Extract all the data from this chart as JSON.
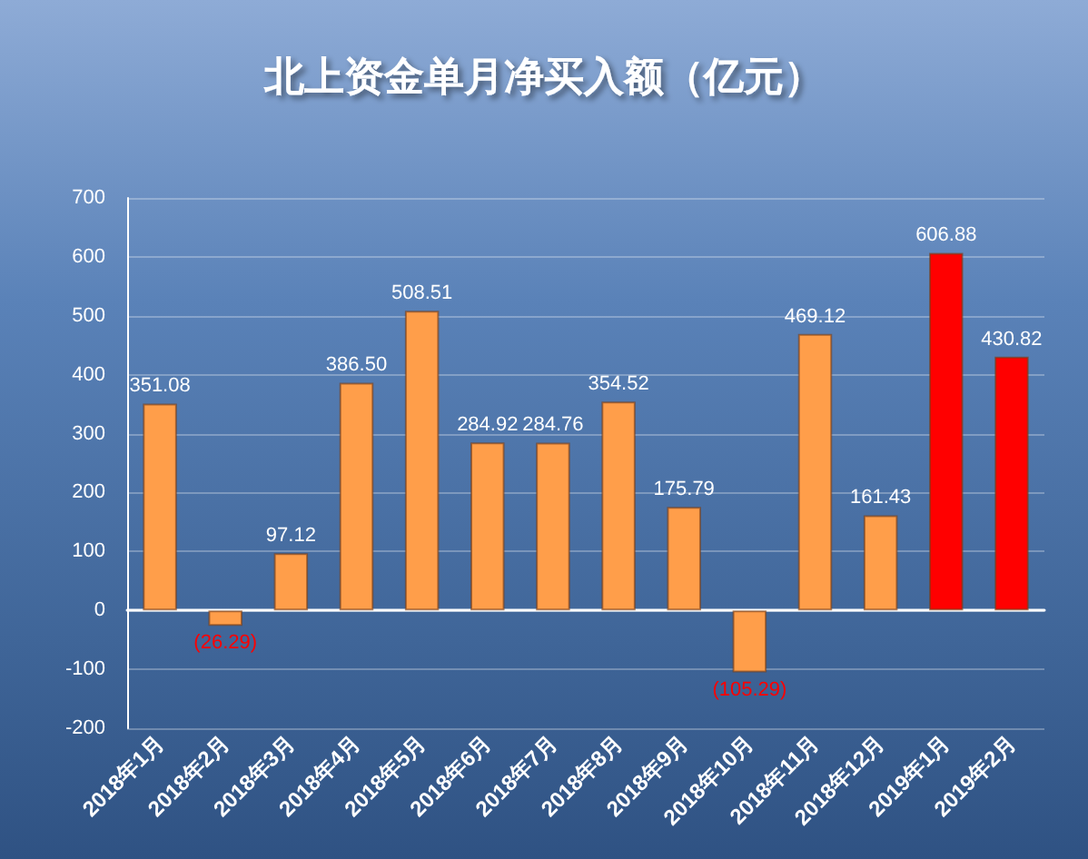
{
  "chart_data": {
    "type": "bar",
    "title": "北上资金单月净买入额（亿元）",
    "categories": [
      "2018年1月",
      "2018年2月",
      "2018年3月",
      "2018年4月",
      "2018年5月",
      "2018年6月",
      "2018年7月",
      "2018年8月",
      "2018年9月",
      "2018年10月",
      "2018年11月",
      "2018年12月",
      "2019年1月",
      "2019年2月"
    ],
    "values": [
      351.08,
      -26.29,
      97.12,
      386.5,
      508.51,
      284.92,
      284.76,
      354.52,
      175.79,
      -105.29,
      469.12,
      161.43,
      606.88,
      430.82
    ],
    "value_labels": [
      "351.08",
      "(26.29)",
      "97.12",
      "386.50",
      "508.51",
      "284.92",
      "284.76",
      "354.52",
      "175.79",
      "(105.29)",
      "469.12",
      "161.43",
      "606.88",
      "430.82"
    ],
    "colors": [
      "#ff9e4a",
      "#ff9e4a",
      "#ff9e4a",
      "#ff9e4a",
      "#ff9e4a",
      "#ff9e4a",
      "#ff9e4a",
      "#ff9e4a",
      "#ff9e4a",
      "#ff9e4a",
      "#ff9e4a",
      "#ff9e4a",
      "#ff0000",
      "#ff0000"
    ],
    "ylim": [
      -200,
      700
    ],
    "yticks": [
      -200,
      -100,
      0,
      100,
      200,
      300,
      400,
      500,
      600,
      700
    ],
    "grid": "y"
  }
}
